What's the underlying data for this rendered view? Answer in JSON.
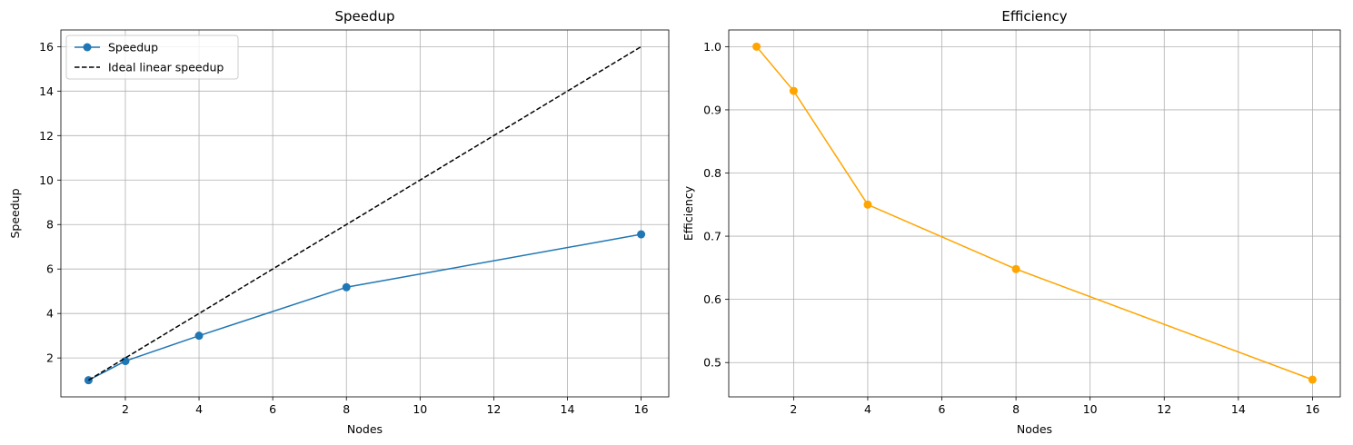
{
  "chart_data": [
    {
      "type": "line",
      "title": "Speedup",
      "xlabel": "Nodes",
      "ylabel": "Speedup",
      "xlim": [
        0.25,
        16.75
      ],
      "ylim": [
        0.25,
        16.75
      ],
      "xticks": [
        2,
        4,
        6,
        8,
        10,
        12,
        14,
        16
      ],
      "yticks": [
        2,
        4,
        6,
        8,
        10,
        12,
        14,
        16
      ],
      "grid": true,
      "legend": "upper left",
      "series": [
        {
          "name": "Speedup",
          "color": "#1f77b4",
          "style": "solid",
          "marker": "circle",
          "x": [
            1,
            2,
            4,
            8,
            16
          ],
          "y": [
            1.0,
            1.86,
            3.0,
            5.18,
            7.56
          ]
        },
        {
          "name": "Ideal linear speedup",
          "color": "#000000",
          "style": "dashed",
          "marker": "none",
          "x": [
            1,
            2,
            4,
            8,
            16
          ],
          "y": [
            1,
            2,
            4,
            8,
            16
          ]
        }
      ]
    },
    {
      "type": "line",
      "title": "Efficiency",
      "xlabel": "Nodes",
      "ylabel": "Efficiency",
      "xlim": [
        0.25,
        16.75
      ],
      "ylim": [
        0.4457,
        1.0264
      ],
      "xticks": [
        2,
        4,
        6,
        8,
        10,
        12,
        14,
        16
      ],
      "yticks": [
        0.5,
        0.6,
        0.7,
        0.8,
        0.9,
        1.0
      ],
      "ytick_labels": [
        "0.5",
        "0.6",
        "0.7",
        "0.8",
        "0.9",
        "1.0"
      ],
      "grid": true,
      "series": [
        {
          "color": "#ffa500",
          "style": "solid",
          "marker": "circle",
          "x": [
            1,
            2,
            4,
            8,
            16
          ],
          "y": [
            1.0,
            0.93,
            0.75,
            0.648,
            0.473
          ]
        }
      ]
    }
  ]
}
